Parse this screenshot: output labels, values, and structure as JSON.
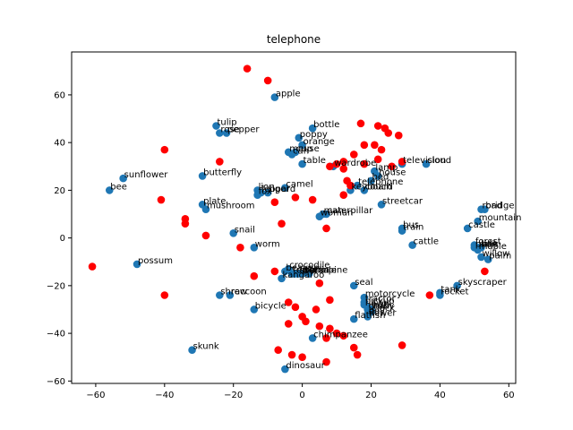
{
  "chart_data": {
    "type": "scatter",
    "title": "telephone",
    "xlabel": "",
    "ylabel": "",
    "xlim": [
      -67,
      62
    ],
    "ylim": [
      -61,
      78
    ],
    "xticks": [
      -60,
      -40,
      -20,
      0,
      20,
      40,
      60
    ],
    "yticks": [
      -60,
      -40,
      -20,
      0,
      20,
      40,
      60
    ],
    "grid": false,
    "colors": {
      "labeled": "#1f77b4",
      "unlabeled": "#ff0000"
    },
    "labeled_points": [
      {
        "label": "apple",
        "x": -8,
        "y": 59
      },
      {
        "label": "tulip",
        "x": -25,
        "y": 47
      },
      {
        "label": "rose",
        "x": -24,
        "y": 44
      },
      {
        "label": "pepper",
        "x": -22,
        "y": 44
      },
      {
        "label": "bottle",
        "x": 3,
        "y": 46
      },
      {
        "label": "poppy",
        "x": -1,
        "y": 42
      },
      {
        "label": "orange",
        "x": 0,
        "y": 39
      },
      {
        "label": "mouse",
        "x": -4,
        "y": 36
      },
      {
        "label": "can",
        "x": -3,
        "y": 35
      },
      {
        "label": "cup",
        "x": -2,
        "y": 36
      },
      {
        "label": "table",
        "x": 0,
        "y": 31
      },
      {
        "label": "wardrobe",
        "x": 9,
        "y": 30
      },
      {
        "label": "television",
        "x": 29,
        "y": 31
      },
      {
        "label": "cloud",
        "x": 36,
        "y": 31
      },
      {
        "label": "house",
        "x": 22,
        "y": 26
      },
      {
        "label": "lamp",
        "x": 21,
        "y": 28
      },
      {
        "label": "bed",
        "x": 20,
        "y": 24
      },
      {
        "label": "sunflower",
        "x": -52,
        "y": 25
      },
      {
        "label": "bee",
        "x": -56,
        "y": 20
      },
      {
        "label": "butterfly",
        "x": -29,
        "y": 26
      },
      {
        "label": "telephone",
        "x": 16,
        "y": 22
      },
      {
        "label": "couch",
        "x": 18,
        "y": 20
      },
      {
        "label": "keyboard",
        "x": 14,
        "y": 20
      },
      {
        "label": "camel",
        "x": -5,
        "y": 21
      },
      {
        "label": "lion",
        "x": -13,
        "y": 20
      },
      {
        "label": "leopard",
        "x": -12,
        "y": 19
      },
      {
        "label": "tiger",
        "x": -10,
        "y": 19
      },
      {
        "label": "fox",
        "x": -13,
        "y": 18
      },
      {
        "label": "plate",
        "x": -29,
        "y": 14
      },
      {
        "label": "mushroom",
        "x": -28,
        "y": 12
      },
      {
        "label": "streetcar",
        "x": 23,
        "y": 14
      },
      {
        "label": "caterpillar",
        "x": 7,
        "y": 10
      },
      {
        "label": "man",
        "x": 6,
        "y": 10
      },
      {
        "label": "woman",
        "x": 5,
        "y": 9
      },
      {
        "label": "bridge",
        "x": 53,
        "y": 12
      },
      {
        "label": "road",
        "x": 52,
        "y": 12
      },
      {
        "label": "mountain",
        "x": 51,
        "y": 7
      },
      {
        "label": "castle",
        "x": 48,
        "y": 4
      },
      {
        "label": "bus",
        "x": 29,
        "y": 4
      },
      {
        "label": "train",
        "x": 29,
        "y": 3
      },
      {
        "label": "snail",
        "x": -20,
        "y": 2
      },
      {
        "label": "cattle",
        "x": 32,
        "y": -3
      },
      {
        "label": "worm",
        "x": -14,
        "y": -4
      },
      {
        "label": "forest",
        "x": 50,
        "y": -3
      },
      {
        "label": "plain",
        "x": 50,
        "y": -4
      },
      {
        "label": "maple",
        "x": 51,
        "y": -5
      },
      {
        "label": "oak",
        "x": 52,
        "y": -4
      },
      {
        "label": "pine",
        "x": 51,
        "y": -4
      },
      {
        "label": "willow",
        "x": 52,
        "y": -8
      },
      {
        "label": "palm",
        "x": 54,
        "y": -9
      },
      {
        "label": "possum",
        "x": -48,
        "y": -11
      },
      {
        "label": "crocodile",
        "x": -4,
        "y": -13
      },
      {
        "label": "dolphin",
        "x": -2,
        "y": -15
      },
      {
        "label": "shark",
        "x": -1,
        "y": -15
      },
      {
        "label": "whale",
        "x": 2,
        "y": -15
      },
      {
        "label": "turtle",
        "x": -3,
        "y": -15
      },
      {
        "label": "beaver",
        "x": -5,
        "y": -14
      },
      {
        "label": "porcupine",
        "x": 0,
        "y": -15
      },
      {
        "label": "kangaroo",
        "x": -6,
        "y": -17
      },
      {
        "label": "seal",
        "x": 15,
        "y": -20
      },
      {
        "label": "skyscraper",
        "x": 45,
        "y": -20
      },
      {
        "label": "rocket",
        "x": 40,
        "y": -24
      },
      {
        "label": "tank",
        "x": 40,
        "y": -23
      },
      {
        "label": "shrew",
        "x": -24,
        "y": -24
      },
      {
        "label": "raccoon",
        "x": -21,
        "y": -24
      },
      {
        "label": "motorcycle",
        "x": 18,
        "y": -25
      },
      {
        "label": "tractor",
        "x": 18,
        "y": -27
      },
      {
        "label": "pickup",
        "x": 18,
        "y": -28
      },
      {
        "label": "lawn",
        "x": 19,
        "y": -29
      },
      {
        "label": "bicycle",
        "x": -14,
        "y": -30
      },
      {
        "label": "chair",
        "x": 19,
        "y": -30
      },
      {
        "label": "clock",
        "x": 20,
        "y": -31
      },
      {
        "label": "flatfish",
        "x": 15,
        "y": -34
      },
      {
        "label": "flower",
        "x": 19,
        "y": -33
      },
      {
        "label": "boy",
        "x": 19,
        "y": -32
      },
      {
        "label": "baby",
        "x": 20,
        "y": -30
      },
      {
        "label": "skunk",
        "x": -32,
        "y": -47
      },
      {
        "label": "chimpanzee",
        "x": 3,
        "y": -42
      },
      {
        "label": "dinosaur",
        "x": -5,
        "y": -55
      }
    ],
    "unlabeled_points": [
      {
        "x": -16,
        "y": 71
      },
      {
        "x": -10,
        "y": 66
      },
      {
        "x": -40,
        "y": 37
      },
      {
        "x": -24,
        "y": 32
      },
      {
        "x": 17,
        "y": 48
      },
      {
        "x": 22,
        "y": 47
      },
      {
        "x": 24,
        "y": 46
      },
      {
        "x": 25,
        "y": 44
      },
      {
        "x": 28,
        "y": 43
      },
      {
        "x": 18,
        "y": 39
      },
      {
        "x": 21,
        "y": 39
      },
      {
        "x": 23,
        "y": 37
      },
      {
        "x": 15,
        "y": 35
      },
      {
        "x": 12,
        "y": 32
      },
      {
        "x": 18,
        "y": 31
      },
      {
        "x": 22,
        "y": 33
      },
      {
        "x": 26,
        "y": 30
      },
      {
        "x": 29,
        "y": 32
      },
      {
        "x": 12,
        "y": 29
      },
      {
        "x": 10,
        "y": 31
      },
      {
        "x": 8,
        "y": 30
      },
      {
        "x": 13,
        "y": 24
      },
      {
        "x": 14,
        "y": 22
      },
      {
        "x": 12,
        "y": 18
      },
      {
        "x": -8,
        "y": 15
      },
      {
        "x": -2,
        "y": 17
      },
      {
        "x": 3,
        "y": 16
      },
      {
        "x": -41,
        "y": 16
      },
      {
        "x": -34,
        "y": 8
      },
      {
        "x": -34,
        "y": 6
      },
      {
        "x": -28,
        "y": 1
      },
      {
        "x": -6,
        "y": 6
      },
      {
        "x": 7,
        "y": 4
      },
      {
        "x": -18,
        "y": -4
      },
      {
        "x": -61,
        "y": -12
      },
      {
        "x": -40,
        "y": -24
      },
      {
        "x": -14,
        "y": -16
      },
      {
        "x": -8,
        "y": -14
      },
      {
        "x": 5,
        "y": -19
      },
      {
        "x": 8,
        "y": -26
      },
      {
        "x": -4,
        "y": -27
      },
      {
        "x": -2,
        "y": -29
      },
      {
        "x": 4,
        "y": -30
      },
      {
        "x": 0,
        "y": -33
      },
      {
        "x": 1,
        "y": -35
      },
      {
        "x": -4,
        "y": -36
      },
      {
        "x": 5,
        "y": -37
      },
      {
        "x": 8,
        "y": -38
      },
      {
        "x": 10,
        "y": -40
      },
      {
        "x": 7,
        "y": -42
      },
      {
        "x": 12,
        "y": -41
      },
      {
        "x": 15,
        "y": -46
      },
      {
        "x": 16,
        "y": -49
      },
      {
        "x": -7,
        "y": -47
      },
      {
        "x": -3,
        "y": -49
      },
      {
        "x": 0,
        "y": -50
      },
      {
        "x": 7,
        "y": -52
      },
      {
        "x": 29,
        "y": -45
      },
      {
        "x": 37,
        "y": -24
      },
      {
        "x": 53,
        "y": -14
      }
    ]
  }
}
